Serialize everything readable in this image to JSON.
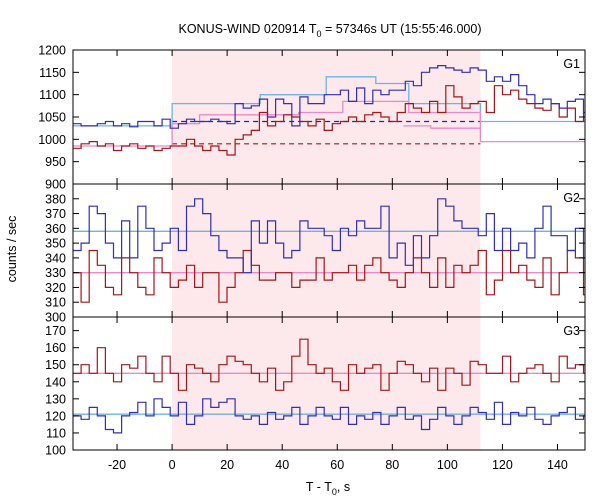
{
  "chart_data": {
    "type": "line",
    "title": {
      "prefix": "KONUS-WIND 020914 T",
      "sub": "0",
      "suffix": " = 57346s UT (15:55:46.000)"
    },
    "xlabel": {
      "prefix": "T - T",
      "sub": "0",
      "suffix": ", s"
    },
    "ylabel": "counts / sec",
    "xlim": [
      -36,
      150
    ],
    "xticks": [
      -20,
      0,
      20,
      40,
      60,
      80,
      100,
      120,
      140
    ],
    "shaded_interval": [
      0,
      112
    ],
    "grid": false,
    "colors": {
      "blue_series": "#3030b0",
      "red_series": "#a01818",
      "blue_fit": "#6cb4e4",
      "red_fit": "#e88cc8",
      "shade": "#fde8ec",
      "blue_bg_dash": "#2020c0",
      "red_bg_dash": "#a01818"
    },
    "panels": [
      {
        "label": "G1",
        "ylim": [
          900,
          1200
        ],
        "yticks": [
          900,
          950,
          1000,
          1050,
          1100,
          1150,
          1200
        ],
        "blue": {
          "step": 2.944,
          "start": -36,
          "values": [
            1035,
            1030,
            1030,
            1035,
            1040,
            1030,
            1035,
            1028,
            1040,
            1040,
            1030,
            1045,
            1025,
            1035,
            1045,
            1040,
            1040,
            1045,
            1040,
            1035,
            1080,
            1070,
            1075,
            1090,
            1050,
            1090,
            1080,
            1030,
            1095,
            1080,
            1080,
            1100,
            1100,
            1110,
            1085,
            1115,
            1080,
            1110,
            1100,
            1110,
            1110,
            1130,
            1120,
            1150,
            1160,
            1165,
            1160,
            1155,
            1150,
            1160,
            1155,
            1130,
            1140,
            1130,
            1145,
            1120,
            1100,
            1080,
            1090,
            1080,
            1070,
            1085,
            1090,
            1060,
            1050,
            1040,
            1040,
            1030,
            1040,
            1050,
            1045,
            1040,
            1055,
            1060,
            1040,
            1030,
            1040,
            1050,
            1040,
            1030,
            1045,
            1030,
            1040,
            1025,
            1030,
            1040,
            1035,
            1040,
            1030,
            1040,
            1030,
            1040,
            1045
          ]
        },
        "red": {
          "step": 2.944,
          "start": -36,
          "values": [
            980,
            990,
            995,
            985,
            990,
            975,
            985,
            990,
            980,
            985,
            975,
            980,
            985,
            985,
            1000,
            985,
            975,
            985,
            975,
            965,
            1000,
            1010,
            1020,
            1060,
            1030,
            1040,
            1055,
            1050,
            1040,
            1030,
            1045,
            1020,
            1035,
            1040,
            1050,
            1040,
            1055,
            1060,
            1050,
            1040,
            1060,
            1080,
            1070,
            1060,
            1085,
            1060,
            1120,
            1095,
            1070,
            1080,
            1085,
            1060,
            1120,
            1100,
            1110,
            1090,
            1080,
            1070,
            1065,
            1080,
            1050,
            1070,
            1040,
            1060,
            1070,
            1060,
            1040,
            1020,
            1000,
            995,
            985,
            1005,
            995,
            1010,
            990,
            985,
            995,
            980,
            1000,
            990,
            995,
            1000,
            975,
            1010,
            995,
            990,
            1005,
            1010,
            990,
            990,
            1015,
            985,
            1020
          ]
        },
        "blue_bg": 1040,
        "red_bg": 990,
        "blue_fit": [
          [
            -36,
            1030
          ],
          [
            0,
            1030
          ],
          [
            0,
            1080
          ],
          [
            32,
            1080
          ],
          [
            32,
            1100
          ],
          [
            56,
            1100
          ],
          [
            56,
            1140
          ],
          [
            74,
            1140
          ],
          [
            74,
            1125
          ],
          [
            86,
            1125
          ],
          [
            86,
            1080
          ],
          [
            112,
            1080
          ],
          [
            112,
            1040
          ],
          [
            150,
            1040
          ]
        ],
        "red_fit": [
          [
            -36,
            985
          ],
          [
            0,
            985
          ],
          [
            0,
            1035
          ],
          [
            10,
            1035
          ],
          [
            10,
            1055
          ],
          [
            46,
            1055
          ],
          [
            46,
            1060
          ],
          [
            62,
            1060
          ],
          [
            62,
            1085
          ],
          [
            86,
            1085
          ],
          [
            86,
            1060
          ],
          [
            112,
            1060
          ],
          [
            112,
            995
          ],
          [
            150,
            995
          ]
        ],
        "red_fit_low": [
          [
            84,
            1030
          ],
          [
            94,
            1030
          ],
          [
            94,
            1025
          ],
          [
            112,
            1025
          ]
        ]
      },
      {
        "label": "G2",
        "ylim": [
          300,
          390
        ],
        "yticks": [
          300,
          310,
          320,
          330,
          340,
          350,
          360,
          370,
          380
        ],
        "blue": {
          "step": 2.944,
          "start": -36,
          "values": [
            345,
            350,
            375,
            370,
            350,
            340,
            365,
            340,
            375,
            360,
            345,
            350,
            360,
            345,
            375,
            380,
            370,
            355,
            345,
            340,
            340,
            330,
            365,
            350,
            365,
            350,
            340,
            345,
            365,
            360,
            360,
            355,
            345,
            360,
            355,
            365,
            360,
            360,
            375,
            340,
            350,
            335,
            355,
            340,
            355,
            380,
            375,
            365,
            360,
            360,
            355,
            370,
            345,
            360,
            345,
            350,
            340,
            360,
            375,
            355,
            355,
            345,
            360,
            340,
            360,
            355,
            355,
            365,
            345,
            360,
            355,
            360,
            340,
            355,
            335,
            350,
            350,
            370,
            340,
            340,
            355,
            345,
            340,
            370,
            355,
            360,
            340,
            355,
            370,
            345,
            360,
            345,
            365
          ]
        },
        "red": {
          "step": 2.944,
          "start": -36,
          "values": [
            330,
            310,
            345,
            335,
            320,
            315,
            340,
            330,
            320,
            315,
            340,
            330,
            320,
            325,
            335,
            320,
            330,
            330,
            310,
            320,
            330,
            345,
            335,
            325,
            325,
            330,
            330,
            320,
            325,
            325,
            340,
            325,
            330,
            330,
            335,
            325,
            335,
            340,
            330,
            325,
            320,
            330,
            340,
            330,
            320,
            340,
            320,
            335,
            330,
            335,
            345,
            315,
            325,
            345,
            330,
            335,
            325,
            320,
            340,
            315,
            330,
            345,
            340,
            315,
            320,
            335,
            335,
            325,
            315,
            335,
            330,
            325,
            320,
            340,
            330,
            325,
            315,
            345,
            330,
            335,
            350,
            330,
            320,
            335,
            325,
            335,
            320,
            335,
            340,
            320,
            325,
            335,
            330
          ]
        },
        "blue_fit": [
          [
            -36,
            358
          ],
          [
            150,
            358
          ]
        ],
        "red_fit": [
          [
            -36,
            330
          ],
          [
            150,
            330
          ]
        ]
      },
      {
        "label": "G3",
        "ylim": [
          100,
          178
        ],
        "yticks": [
          100,
          110,
          120,
          130,
          140,
          150,
          160,
          170
        ],
        "blue": {
          "step": 2.944,
          "start": -36,
          "values": [
            120,
            118,
            125,
            120,
            112,
            110,
            120,
            122,
            128,
            120,
            130,
            125,
            120,
            128,
            115,
            120,
            130,
            125,
            128,
            130,
            120,
            118,
            120,
            115,
            122,
            118,
            120,
            125,
            115,
            120,
            125,
            120,
            118,
            125,
            115,
            120,
            118,
            122,
            115,
            120,
            125,
            118,
            120,
            112,
            118,
            125,
            120,
            115,
            120,
            125,
            122,
            118,
            128,
            115,
            122,
            120,
            125,
            118,
            115,
            120,
            122,
            125,
            118,
            120,
            115,
            118,
            120,
            125,
            110,
            118,
            115,
            122,
            125,
            118,
            120,
            115,
            128,
            120,
            125,
            118,
            122,
            125,
            120,
            115,
            110,
            118,
            122,
            120,
            115,
            120,
            118,
            115,
            120
          ]
        },
        "red": {
          "step": 2.944,
          "start": -36,
          "values": [
            145,
            150,
            145,
            160,
            145,
            140,
            150,
            148,
            155,
            145,
            140,
            155,
            145,
            135,
            150,
            148,
            145,
            140,
            150,
            155,
            152,
            150,
            145,
            140,
            148,
            135,
            140,
            155,
            165,
            150,
            145,
            148,
            140,
            135,
            150,
            145,
            148,
            150,
            135,
            145,
            152,
            150,
            145,
            140,
            148,
            135,
            148,
            145,
            138,
            152,
            150,
            145,
            145,
            155,
            140,
            145,
            148,
            150,
            145,
            140,
            155,
            148,
            150,
            145,
            140,
            150,
            152,
            145,
            140,
            155,
            145,
            150,
            148,
            140,
            150,
            135,
            145,
            148,
            150,
            145,
            152,
            148,
            140,
            150,
            145,
            142,
            148,
            150,
            155,
            140,
            145,
            148,
            150
          ]
        },
        "blue_fit": [
          [
            -36,
            121
          ],
          [
            150,
            121
          ]
        ],
        "red_fit": [
          [
            -36,
            145
          ],
          [
            150,
            145
          ]
        ]
      }
    ]
  }
}
